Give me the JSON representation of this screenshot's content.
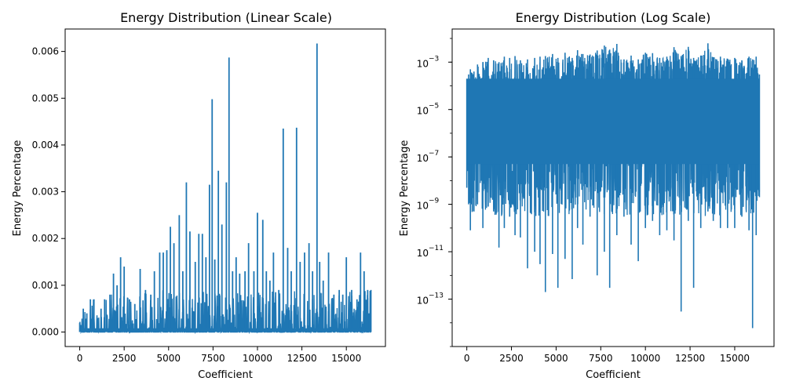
{
  "chart_data": [
    {
      "type": "line",
      "title": "Energy Distribution (Linear Scale)",
      "xlabel": "Coefficient",
      "ylabel": "Energy Percentage",
      "xlim": [
        -820,
        17200
      ],
      "ylim": [
        -0.00031,
        0.00648
      ],
      "yscale": "linear",
      "grid": false,
      "color": "#1f77b4",
      "xticks": [
        0,
        2500,
        5000,
        7500,
        10000,
        12500,
        15000
      ],
      "xtick_labels": [
        "0",
        "2500",
        "5000",
        "7500",
        "10000",
        "12500",
        "15000"
      ],
      "yticks": [
        0.0,
        0.001,
        0.002,
        0.003,
        0.004,
        0.005,
        0.006
      ],
      "ytick_labels": [
        "0.000",
        "0.001",
        "0.002",
        "0.003",
        "0.004",
        "0.005",
        "0.006"
      ],
      "series": [
        {
          "x": [
            0,
            200,
            400,
            600,
            800,
            1000,
            1200,
            1400,
            1700,
            1900,
            2100,
            2300,
            2500,
            2800,
            3100,
            3400,
            3700,
            4000,
            4200,
            4500,
            4700,
            4900,
            5100,
            5300,
            5600,
            5800,
            6000,
            6200,
            6500,
            6700,
            6900,
            7100,
            7300,
            7450,
            7600,
            7800,
            8000,
            8250,
            8400,
            8600,
            8800,
            9000,
            9300,
            9500,
            9800,
            10000,
            10300,
            10500,
            10700,
            10900,
            11200,
            11450,
            11700,
            11900,
            12200,
            12400,
            12650,
            12900,
            13100,
            13350,
            13500,
            13700,
            14000,
            14300,
            14600,
            14800,
            15000,
            15300,
            15600,
            15800,
            16000,
            16200,
            16383
          ],
          "y": [
            0.0002,
            0.0005,
            0.0004,
            0.0007,
            0.0007,
            0.0003,
            0.0005,
            0.0007,
            0.0008,
            0.00125,
            0.001,
            0.0016,
            0.0014,
            0.0007,
            0.0006,
            0.00135,
            0.0009,
            0.0008,
            0.0013,
            0.0017,
            0.0017,
            0.00175,
            0.00225,
            0.0019,
            0.0025,
            0.0013,
            0.0032,
            0.00215,
            0.0015,
            0.0021,
            0.0021,
            0.0016,
            0.00315,
            0.00498,
            0.00155,
            0.00345,
            0.0023,
            0.0032,
            0.00587,
            0.0013,
            0.0016,
            0.00125,
            0.0013,
            0.0019,
            0.0013,
            0.00255,
            0.0024,
            0.0013,
            0.0011,
            0.0017,
            0.0009,
            0.00435,
            0.0018,
            0.0013,
            0.00437,
            0.0015,
            0.0017,
            0.0019,
            0.0013,
            0.00617,
            0.0015,
            0.0011,
            0.0017,
            0.0008,
            0.0009,
            0.0008,
            0.0016,
            0.0009,
            0.0007,
            0.0017,
            0.0013,
            0.0009,
            0.0009
          ]
        }
      ]
    },
    {
      "type": "line",
      "title": "Energy Distribution (Log Scale)",
      "xlabel": "Coefficient",
      "ylabel": "Energy Percentage",
      "xlim": [
        -820,
        17200
      ],
      "ylim": [
        1e-15,
        0.025
      ],
      "yscale": "log",
      "grid": false,
      "color": "#1f77b4",
      "xticks": [
        0,
        2500,
        5000,
        7500,
        10000,
        12500,
        15000
      ],
      "xtick_labels": [
        "0",
        "2500",
        "5000",
        "7500",
        "10000",
        "12500",
        "15000"
      ],
      "yticks": [
        -13,
        -11,
        -9,
        -7,
        -5,
        -3
      ],
      "ytick_labels": [
        "10",
        "10",
        "10",
        "10",
        "10",
        "10"
      ],
      "ytick_exponents": [
        "−13",
        "−11",
        "−9",
        "−7",
        "−5",
        "−3"
      ],
      "series": [
        {
          "x": [
            0,
            100,
            200,
            400,
            600,
            900,
            1200,
            1500,
            1800,
            2100,
            2400,
            2700,
            3000,
            3400,
            3800,
            4100,
            4400,
            4800,
            5100,
            5500,
            5900,
            6200,
            6500,
            6900,
            7300,
            7700,
            8000,
            8400,
            8800,
            9200,
            9600,
            10000,
            10400,
            10800,
            11200,
            11600,
            12000,
            12400,
            12700,
            13100,
            13500,
            13800,
            14200,
            14600,
            15000,
            15400,
            15800,
            16000,
            16200,
            16383
          ],
          "y_min": [
            5e-09,
            1e-09,
            8e-11,
            5e-10,
            1e-09,
            1e-10,
            8e-10,
            5e-10,
            1.5e-11,
            1e-10,
            3e-10,
            5e-11,
            4e-11,
            2e-12,
            1e-11,
            3e-12,
            2e-13,
            8e-12,
            3e-13,
            5e-12,
            7e-13,
            1e-10,
            2e-11,
            3e-10,
            1e-12,
            1e-11,
            3e-13,
            5e-11,
            3e-10,
            2e-11,
            4e-12,
            1e-10,
            2e-10,
            5e-11,
            8e-11,
            3e-11,
            3e-14,
            2e-10,
            3e-13,
            1e-10,
            5e-10,
            2e-10,
            1e-10,
            1e-10,
            1e-10,
            3e-10,
            8e-11,
            6e-15,
            5e-11,
            2e-09
          ],
          "y_max": [
            0.0002,
            0.0003,
            0.0005,
            0.0004,
            0.0008,
            0.001,
            0.0015,
            0.0012,
            0.001,
            0.0017,
            0.0015,
            0.0018,
            0.0012,
            0.0013,
            0.0015,
            0.0017,
            0.0018,
            0.0022,
            0.0015,
            0.0025,
            0.0015,
            0.0032,
            0.0022,
            0.0021,
            0.0031,
            0.005,
            0.0034,
            0.0059,
            0.0013,
            0.0019,
            0.0013,
            0.0025,
            0.0024,
            0.0015,
            0.0017,
            0.0043,
            0.0018,
            0.0044,
            0.0015,
            0.0019,
            0.0062,
            0.0016,
            0.0017,
            0.0014,
            0.0015,
            0.0012,
            0.0017,
            0.0013,
            0.0017,
            0.0003
          ]
        }
      ]
    }
  ]
}
